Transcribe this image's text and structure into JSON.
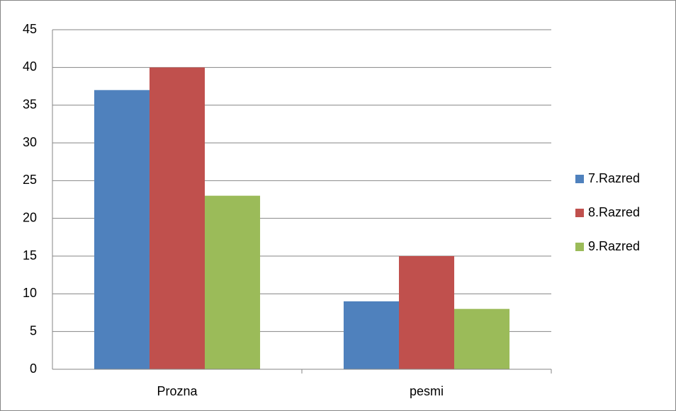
{
  "chart_data": {
    "type": "bar",
    "categories": [
      "Prozna",
      "pesmi"
    ],
    "series": [
      {
        "name": "7.Razred",
        "color": "#4f81bd",
        "values": [
          37,
          9
        ]
      },
      {
        "name": "8.Razred",
        "color": "#c0504d",
        "values": [
          40,
          15
        ]
      },
      {
        "name": "9.Razred",
        "color": "#9bbb59",
        "values": [
          23,
          8
        ]
      }
    ],
    "ylim": [
      0,
      45
    ],
    "yticks": [
      0,
      5,
      10,
      15,
      20,
      25,
      30,
      35,
      40,
      45
    ],
    "grid": true,
    "legend": "right"
  }
}
